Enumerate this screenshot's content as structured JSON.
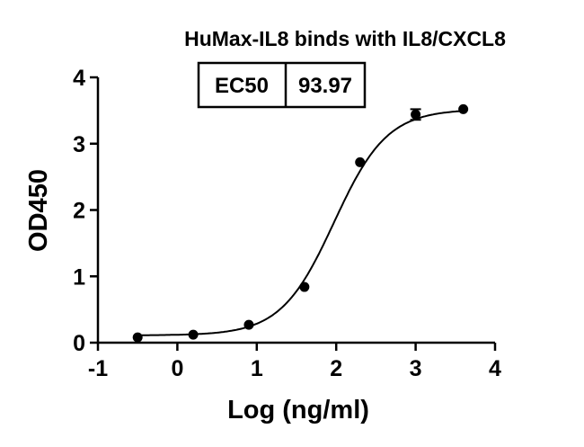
{
  "chart_data": {
    "type": "scatter",
    "title": "HuMax-IL8 binds with IL8/CXCL8",
    "xlabel": "Log (ng/ml)",
    "ylabel": "OD450",
    "xlim": [
      -1,
      4
    ],
    "ylim": [
      0,
      4
    ],
    "xticks": [
      "-1",
      "0",
      "1",
      "2",
      "3",
      "4"
    ],
    "yticks": [
      "0",
      "1",
      "2",
      "3",
      "4"
    ],
    "grid": false,
    "series": [
      {
        "points": [
          {
            "x": -0.5,
            "y": 0.08
          },
          {
            "x": 0.2,
            "y": 0.12
          },
          {
            "x": 0.9,
            "y": 0.27
          },
          {
            "x": 1.6,
            "y": 0.84
          },
          {
            "x": 2.3,
            "y": 2.72
          },
          {
            "x": 3.0,
            "y": 3.44,
            "error": 0.08
          },
          {
            "x": 3.6,
            "y": 3.52
          }
        ],
        "fit": {
          "bottom": 0.11,
          "top": 3.52,
          "logEC50": 1.973,
          "hill": 1.3
        }
      }
    ],
    "ec50_table": {
      "label": "EC50",
      "value": "93.97"
    }
  }
}
